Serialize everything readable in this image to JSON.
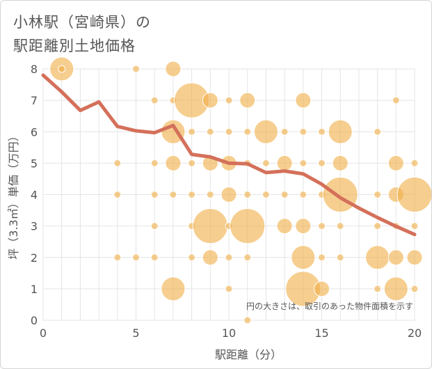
{
  "chart_data": {
    "type": "scatter",
    "title_lines": [
      "小林駅（宮崎県）の",
      "駅距離別土地価格"
    ],
    "xlabel": "駅距離（分）",
    "ylabel": "坪（3.3㎡）単価（万円）",
    "xlim": [
      0,
      20
    ],
    "ylim": [
      0,
      8
    ],
    "x_ticks": [
      0,
      5,
      10,
      15,
      20
    ],
    "y_ticks": [
      0,
      1,
      2,
      3,
      4,
      5,
      6,
      7,
      8
    ],
    "note": "円の大きさは、取引のあった物件面積を示す",
    "colors": {
      "bubble": "#f0b04a",
      "line": "#d4705a",
      "grid": "#e4e4e4",
      "axis": "#9aa0aa"
    },
    "bubbles": [
      {
        "x": 1,
        "y": 8,
        "s": 3
      },
      {
        "x": 1,
        "y": 8,
        "s": 1
      },
      {
        "x": 5,
        "y": 8,
        "s": 1
      },
      {
        "x": 7,
        "y": 8,
        "s": 2
      },
      {
        "x": 6,
        "y": 7,
        "s": 1
      },
      {
        "x": 7,
        "y": 7,
        "s": 1
      },
      {
        "x": 8,
        "y": 7,
        "s": 4
      },
      {
        "x": 9,
        "y": 7,
        "s": 2
      },
      {
        "x": 10,
        "y": 7,
        "s": 1
      },
      {
        "x": 11,
        "y": 7,
        "s": 2
      },
      {
        "x": 14,
        "y": 7,
        "s": 2
      },
      {
        "x": 19,
        "y": 7,
        "s": 1
      },
      {
        "x": 7,
        "y": 6,
        "s": 3
      },
      {
        "x": 8,
        "y": 6,
        "s": 1
      },
      {
        "x": 9,
        "y": 6,
        "s": 1
      },
      {
        "x": 10,
        "y": 6,
        "s": 1
      },
      {
        "x": 11,
        "y": 6,
        "s": 1
      },
      {
        "x": 12,
        "y": 6,
        "s": 3
      },
      {
        "x": 13,
        "y": 6,
        "s": 1
      },
      {
        "x": 14,
        "y": 6,
        "s": 1
      },
      {
        "x": 15,
        "y": 6,
        "s": 1
      },
      {
        "x": 16,
        "y": 6,
        "s": 3
      },
      {
        "x": 18,
        "y": 6,
        "s": 1
      },
      {
        "x": 4,
        "y": 5,
        "s": 1
      },
      {
        "x": 6,
        "y": 5,
        "s": 1
      },
      {
        "x": 7,
        "y": 5,
        "s": 2
      },
      {
        "x": 8,
        "y": 5,
        "s": 1
      },
      {
        "x": 9,
        "y": 5,
        "s": 2
      },
      {
        "x": 10,
        "y": 5,
        "s": 2
      },
      {
        "x": 11,
        "y": 5,
        "s": 1
      },
      {
        "x": 12,
        "y": 5,
        "s": 1
      },
      {
        "x": 13,
        "y": 5,
        "s": 2
      },
      {
        "x": 14,
        "y": 5,
        "s": 1
      },
      {
        "x": 15,
        "y": 5,
        "s": 1
      },
      {
        "x": 16,
        "y": 5,
        "s": 2
      },
      {
        "x": 19,
        "y": 5,
        "s": 2
      },
      {
        "x": 20,
        "y": 5,
        "s": 1
      },
      {
        "x": 4,
        "y": 4,
        "s": 1
      },
      {
        "x": 6,
        "y": 4,
        "s": 1
      },
      {
        "x": 7,
        "y": 4,
        "s": 1
      },
      {
        "x": 8,
        "y": 4,
        "s": 1
      },
      {
        "x": 9,
        "y": 4,
        "s": 1
      },
      {
        "x": 10,
        "y": 4,
        "s": 2
      },
      {
        "x": 11,
        "y": 4,
        "s": 1
      },
      {
        "x": 12,
        "y": 4,
        "s": 1
      },
      {
        "x": 13,
        "y": 4,
        "s": 1
      },
      {
        "x": 14,
        "y": 4,
        "s": 1
      },
      {
        "x": 15,
        "y": 4,
        "s": 1
      },
      {
        "x": 16,
        "y": 4,
        "s": 4
      },
      {
        "x": 18,
        "y": 4,
        "s": 1
      },
      {
        "x": 19,
        "y": 4,
        "s": 2
      },
      {
        "x": 20,
        "y": 4,
        "s": 4
      },
      {
        "x": 6,
        "y": 3,
        "s": 1
      },
      {
        "x": 8,
        "y": 3,
        "s": 1
      },
      {
        "x": 9,
        "y": 3,
        "s": 4
      },
      {
        "x": 10,
        "y": 3,
        "s": 1
      },
      {
        "x": 11,
        "y": 3,
        "s": 4
      },
      {
        "x": 13,
        "y": 3,
        "s": 2
      },
      {
        "x": 14,
        "y": 3,
        "s": 2
      },
      {
        "x": 15,
        "y": 3,
        "s": 1
      },
      {
        "x": 16,
        "y": 3,
        "s": 1
      },
      {
        "x": 18,
        "y": 3,
        "s": 1
      },
      {
        "x": 19,
        "y": 3,
        "s": 1
      },
      {
        "x": 20,
        "y": 3,
        "s": 1
      },
      {
        "x": 4,
        "y": 2,
        "s": 1
      },
      {
        "x": 5,
        "y": 2,
        "s": 1
      },
      {
        "x": 6,
        "y": 2,
        "s": 1
      },
      {
        "x": 8,
        "y": 2,
        "s": 1
      },
      {
        "x": 9,
        "y": 2,
        "s": 2
      },
      {
        "x": 10,
        "y": 2,
        "s": 1
      },
      {
        "x": 11,
        "y": 2,
        "s": 1
      },
      {
        "x": 14,
        "y": 2,
        "s": 3
      },
      {
        "x": 15,
        "y": 2,
        "s": 1
      },
      {
        "x": 16,
        "y": 2,
        "s": 1
      },
      {
        "x": 18,
        "y": 2,
        "s": 3
      },
      {
        "x": 19,
        "y": 2,
        "s": 2
      },
      {
        "x": 20,
        "y": 2,
        "s": 2
      },
      {
        "x": 7,
        "y": 1,
        "s": 3
      },
      {
        "x": 10,
        "y": 1,
        "s": 1
      },
      {
        "x": 14,
        "y": 1,
        "s": 4
      },
      {
        "x": 15,
        "y": 1,
        "s": 2
      },
      {
        "x": 18,
        "y": 1,
        "s": 1
      },
      {
        "x": 19,
        "y": 1,
        "s": 3
      },
      {
        "x": 20,
        "y": 1,
        "s": 1
      },
      {
        "x": 11,
        "y": 0,
        "s": 1
      }
    ],
    "trend": {
      "x": [
        0,
        1,
        2,
        3,
        4,
        5,
        6,
        7,
        8,
        9,
        10,
        11,
        12,
        13,
        14,
        15,
        16,
        17,
        18,
        19,
        20
      ],
      "y": [
        7.8,
        7.27,
        6.68,
        6.95,
        6.17,
        6.03,
        5.97,
        6.2,
        5.28,
        5.2,
        5.0,
        4.98,
        4.7,
        4.75,
        4.66,
        4.33,
        3.9,
        3.57,
        3.27,
        2.99,
        2.73
      ]
    }
  }
}
